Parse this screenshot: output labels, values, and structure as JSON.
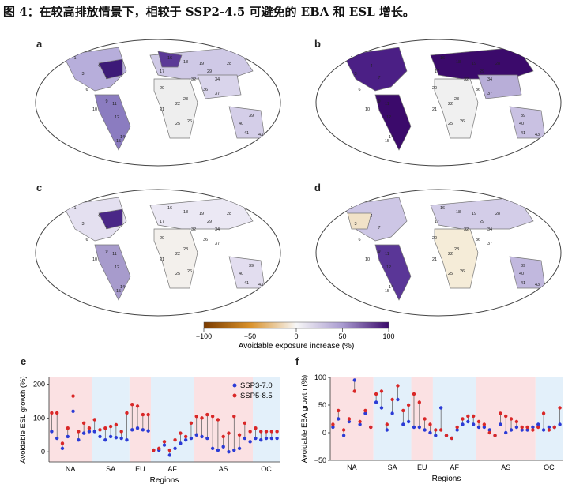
{
  "figure": {
    "title": "图 4：在较高排放情景下，相较于 SSP2-4.5 可避免的 EBA 和 ESL 增长。",
    "panel_letters": [
      "a",
      "b",
      "c",
      "d",
      "e",
      "f"
    ]
  },
  "maps": [
    {
      "id": "a",
      "labels": [
        [
          "1",
          "95",
          "75"
        ],
        [
          "4",
          "125",
          "85"
        ],
        [
          "3",
          "105",
          "95"
        ],
        [
          "7",
          "135",
          "100"
        ],
        [
          "6",
          "110",
          "115"
        ],
        [
          "11",
          "145",
          "133"
        ],
        [
          "9",
          "135",
          "130"
        ],
        [
          "10",
          "120",
          "140"
        ],
        [
          "12",
          "148",
          "150"
        ],
        [
          "14",
          "155",
          "175"
        ],
        [
          "15",
          "150",
          "180"
        ],
        [
          "16",
          "215",
          "75"
        ],
        [
          "17",
          "205",
          "92"
        ],
        [
          "18",
          "235",
          "80"
        ],
        [
          "19",
          "255",
          "82"
        ],
        [
          "29",
          "265",
          "92"
        ],
        [
          "28",
          "290",
          "82"
        ],
        [
          "32",
          "245",
          "102"
        ],
        [
          "34",
          "275",
          "102"
        ],
        [
          "20",
          "205",
          "113"
        ],
        [
          "23",
          "235",
          "127"
        ],
        [
          "36",
          "260",
          "115"
        ],
        [
          "37",
          "275",
          "120"
        ],
        [
          "21",
          "205",
          "140"
        ],
        [
          "22",
          "225",
          "133"
        ],
        [
          "25",
          "225",
          "158"
        ],
        [
          "26",
          "240",
          "155"
        ],
        [
          "39",
          "318",
          "148"
        ],
        [
          "40",
          "305",
          "158"
        ],
        [
          "41",
          "312",
          "170"
        ],
        [
          "43",
          "330",
          "172"
        ]
      ]
    },
    {
      "id": "b",
      "labels": [
        [
          "1",
          "445",
          "75"
        ],
        [
          "4",
          "470",
          "85"
        ],
        [
          "3",
          "450",
          "95"
        ],
        [
          "7",
          "480",
          "100"
        ],
        [
          "6",
          "455",
          "115"
        ],
        [
          "11",
          "490",
          "133"
        ],
        [
          "9",
          "480",
          "130"
        ],
        [
          "10",
          "465",
          "140"
        ],
        [
          "12",
          "492",
          "150"
        ],
        [
          "14",
          "495",
          "175"
        ],
        [
          "15",
          "490",
          "180"
        ],
        [
          "16",
          "560",
          "75"
        ],
        [
          "17",
          "553",
          "92"
        ],
        [
          "18",
          "580",
          "80"
        ],
        [
          "19",
          "600",
          "82"
        ],
        [
          "29",
          "610",
          "92"
        ],
        [
          "28",
          "630",
          "82"
        ],
        [
          "32",
          "590",
          "102"
        ],
        [
          "34",
          "620",
          "102"
        ],
        [
          "20",
          "550",
          "113"
        ],
        [
          "23",
          "578",
          "127"
        ],
        [
          "36",
          "605",
          "115"
        ],
        [
          "37",
          "620",
          "120"
        ],
        [
          "21",
          "550",
          "140"
        ],
        [
          "22",
          "570",
          "133"
        ],
        [
          "25",
          "570",
          "158"
        ],
        [
          "26",
          "585",
          "155"
        ],
        [
          "39",
          "662",
          "148"
        ],
        [
          "40",
          "660",
          "158"
        ],
        [
          "41",
          "662",
          "170"
        ],
        [
          "43",
          "680",
          "172"
        ]
      ]
    },
    {
      "id": "c",
      "labels": [
        [
          "1",
          "95",
          "265"
        ],
        [
          "4",
          "125",
          "275"
        ],
        [
          "3",
          "105",
          "285"
        ],
        [
          "7",
          "135",
          "290"
        ],
        [
          "6",
          "110",
          "305"
        ],
        [
          "11",
          "145",
          "323"
        ],
        [
          "9",
          "135",
          "320"
        ],
        [
          "10",
          "120",
          "330"
        ],
        [
          "12",
          "148",
          "340"
        ],
        [
          "14",
          "155",
          "365"
        ],
        [
          "15",
          "150",
          "370"
        ],
        [
          "16",
          "215",
          "265"
        ],
        [
          "17",
          "205",
          "282"
        ],
        [
          "18",
          "235",
          "270"
        ],
        [
          "19",
          "255",
          "272"
        ],
        [
          "29",
          "265",
          "282"
        ],
        [
          "28",
          "290",
          "272"
        ],
        [
          "32",
          "245",
          "292"
        ],
        [
          "34",
          "275",
          "292"
        ],
        [
          "20",
          "205",
          "303"
        ],
        [
          "23",
          "235",
          "317"
        ],
        [
          "36",
          "260",
          "305"
        ],
        [
          "37",
          "275",
          "310"
        ],
        [
          "21",
          "205",
          "330"
        ],
        [
          "22",
          "225",
          "323"
        ],
        [
          "25",
          "225",
          "348"
        ],
        [
          "26",
          "240",
          "345"
        ],
        [
          "39",
          "318",
          "338"
        ],
        [
          "40",
          "305",
          "348"
        ],
        [
          "41",
          "312",
          "360"
        ],
        [
          "43",
          "330",
          "362"
        ]
      ]
    },
    {
      "id": "d",
      "labels": [
        [
          "1",
          "445",
          "265"
        ],
        [
          "4",
          "470",
          "275"
        ],
        [
          "3",
          "450",
          "285"
        ],
        [
          "7",
          "480",
          "290"
        ],
        [
          "6",
          "455",
          "305"
        ],
        [
          "11",
          "490",
          "323"
        ],
        [
          "9",
          "480",
          "320"
        ],
        [
          "10",
          "465",
          "330"
        ],
        [
          "12",
          "492",
          "340"
        ],
        [
          "14",
          "495",
          "365"
        ],
        [
          "15",
          "490",
          "370"
        ],
        [
          "16",
          "560",
          "265"
        ],
        [
          "17",
          "553",
          "282"
        ],
        [
          "18",
          "580",
          "270"
        ],
        [
          "19",
          "600",
          "272"
        ],
        [
          "29",
          "610",
          "282"
        ],
        [
          "28",
          "630",
          "272"
        ],
        [
          "32",
          "590",
          "292"
        ],
        [
          "34",
          "620",
          "292"
        ],
        [
          "20",
          "550",
          "303"
        ],
        [
          "23",
          "578",
          "317"
        ],
        [
          "36",
          "605",
          "305"
        ],
        [
          "37",
          "620",
          "310"
        ],
        [
          "21",
          "550",
          "330"
        ],
        [
          "22",
          "570",
          "323"
        ],
        [
          "25",
          "570",
          "348"
        ],
        [
          "26",
          "585",
          "345"
        ],
        [
          "39",
          "662",
          "338"
        ],
        [
          "40",
          "660",
          "348"
        ],
        [
          "41",
          "662",
          "360"
        ],
        [
          "43",
          "680",
          "362"
        ]
      ]
    }
  ],
  "colorbar": {
    "ticks": [
      "−100",
      "−50",
      "0",
      "50",
      "100"
    ],
    "label": "Avoidable exposure increase (%)"
  },
  "legend": {
    "ssp3": "SSP3-7.0",
    "ssp5": "SSP5-8.5",
    "ssp3_color": "#2b3bd6",
    "ssp5_color": "#d92727"
  },
  "chart_data": [
    {
      "type": "scatter",
      "panel": "e",
      "ylabel": "Avoidable ESL growth (%)",
      "xlabel": "Regions",
      "ylim": [
        -30,
        220
      ],
      "yticks": [
        "0",
        "100",
        "200"
      ],
      "group_labels": [
        "NA",
        "SA",
        "EU",
        "AF",
        "AS",
        "OC"
      ],
      "group_sizes": [
        8,
        7,
        4,
        8,
        11,
        5
      ],
      "ssp3": [
        60,
        40,
        10,
        45,
        120,
        35,
        55,
        60,
        60,
        45,
        35,
        45,
        42,
        40,
        35,
        65,
        70,
        65,
        62,
        5,
        5,
        20,
        -10,
        10,
        25,
        35,
        40,
        50,
        45,
        40,
        10,
        5,
        15,
        0,
        5,
        10,
        40,
        30,
        40,
        35,
        40,
        40,
        40
      ],
      "ssp5": [
        115,
        115,
        25,
        70,
        165,
        60,
        85,
        70,
        95,
        65,
        70,
        75,
        80,
        60,
        115,
        140,
        135,
        110,
        110,
        5,
        10,
        30,
        5,
        35,
        55,
        45,
        85,
        105,
        100,
        110,
        105,
        95,
        45,
        55,
        105,
        50,
        85,
        60,
        70,
        60,
        60,
        60,
        60
      ]
    },
    {
      "type": "scatter",
      "panel": "f",
      "ylabel": "Avoidable EBA growth (%)",
      "xlabel": "Regions",
      "ylim": [
        -50,
        100
      ],
      "yticks": [
        "−50",
        "0",
        "50",
        "100"
      ],
      "group_labels": [
        "NA",
        "SA",
        "EU",
        "AF",
        "AS",
        "OC"
      ],
      "group_sizes": [
        8,
        7,
        4,
        8,
        11,
        5
      ],
      "ssp3": [
        10,
        25,
        -5,
        20,
        95,
        15,
        35,
        10,
        55,
        45,
        5,
        35,
        60,
        15,
        20,
        10,
        10,
        5,
        0,
        -5,
        45,
        -5,
        -10,
        5,
        15,
        20,
        15,
        10,
        10,
        5,
        -5,
        15,
        0,
        5,
        10,
        5,
        5,
        10,
        15,
        5,
        10,
        10,
        15
      ],
      "ssp5": [
        15,
        40,
        5,
        25,
        75,
        20,
        40,
        10,
        70,
        75,
        15,
        60,
        85,
        40,
        50,
        70,
        55,
        25,
        15,
        5,
        5,
        -5,
        -10,
        10,
        25,
        30,
        30,
        20,
        15,
        0,
        -5,
        35,
        30,
        25,
        20,
        10,
        10,
        5,
        10,
        35,
        5,
        10,
        45
      ]
    }
  ]
}
